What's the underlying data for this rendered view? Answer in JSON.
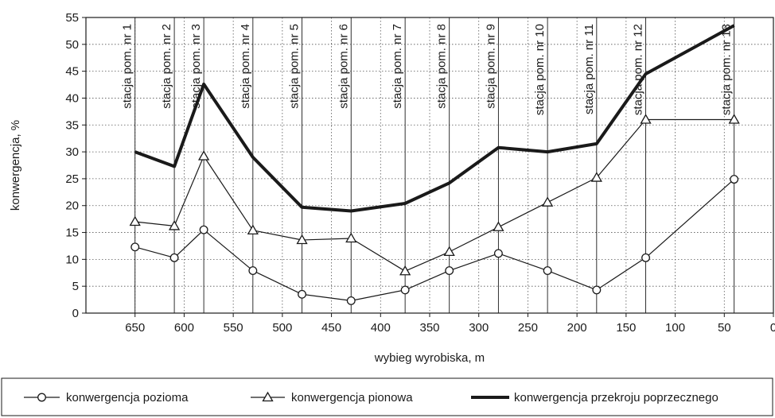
{
  "chart_data": {
    "type": "line",
    "title": "",
    "xlabel": "wybieg wyrobiska, m",
    "ylabel": "konwergencja, %",
    "xlim": [
      0,
      700
    ],
    "x_reversed": true,
    "ylim": [
      0,
      55
    ],
    "x_ticks": [
      650,
      600,
      550,
      500,
      450,
      400,
      350,
      300,
      250,
      200,
      150,
      100,
      50,
      0
    ],
    "y_ticks": [
      0,
      5,
      10,
      15,
      20,
      25,
      30,
      35,
      40,
      45,
      50,
      55
    ],
    "grid": "dotted",
    "legend_position": "bottom",
    "stations": [
      {
        "label": "stacja pom. nr 1",
        "x": 650
      },
      {
        "label": "stacja pom. nr 2",
        "x": 610
      },
      {
        "label": "stacja pom. nr 3",
        "x": 580
      },
      {
        "label": "stacja pom. nr 4",
        "x": 530
      },
      {
        "label": "stacja pom. nr 5",
        "x": 480
      },
      {
        "label": "stacja pom. nr 6",
        "x": 430
      },
      {
        "label": "stacja pom. nr 7",
        "x": 375
      },
      {
        "label": "stacja pom. nr 8",
        "x": 330
      },
      {
        "label": "stacja pom. nr 9",
        "x": 280
      },
      {
        "label": "stacja pom. nr 10",
        "x": 230
      },
      {
        "label": "stacja pom. nr 11",
        "x": 180
      },
      {
        "label": "stacja pom. nr 12",
        "x": 130
      },
      {
        "label": "stacja pom. nr 13",
        "x": 40
      }
    ],
    "series": [
      {
        "name": "konwergencja pozioma",
        "marker": "circle",
        "color": "#1a1a1a",
        "x": [
          650,
          610,
          580,
          530,
          480,
          430,
          375,
          330,
          280,
          230,
          180,
          130,
          40
        ],
        "y": [
          12.3,
          10.3,
          15.5,
          7.9,
          3.5,
          2.3,
          4.3,
          7.9,
          11.1,
          7.9,
          4.3,
          10.3,
          24.9
        ]
      },
      {
        "name": "konwergencja pionowa",
        "marker": "triangle",
        "color": "#1a1a1a",
        "x": [
          650,
          610,
          580,
          530,
          480,
          430,
          375,
          330,
          280,
          230,
          180,
          130,
          40
        ],
        "y": [
          17.0,
          16.2,
          29.2,
          15.4,
          13.6,
          13.9,
          7.8,
          11.4,
          16.0,
          20.6,
          25.2,
          36.0,
          36.0
        ]
      },
      {
        "name": "konwergencja przekroju poprzecznego",
        "marker": "none",
        "color": "#1a1a1a",
        "x": [
          650,
          610,
          580,
          530,
          480,
          430,
          375,
          330,
          280,
          230,
          180,
          130,
          40
        ],
        "y": [
          30.0,
          27.3,
          42.6,
          29.0,
          19.7,
          19.0,
          20.4,
          24.2,
          30.8,
          30.0,
          31.5,
          44.5,
          53.5
        ]
      }
    ]
  }
}
